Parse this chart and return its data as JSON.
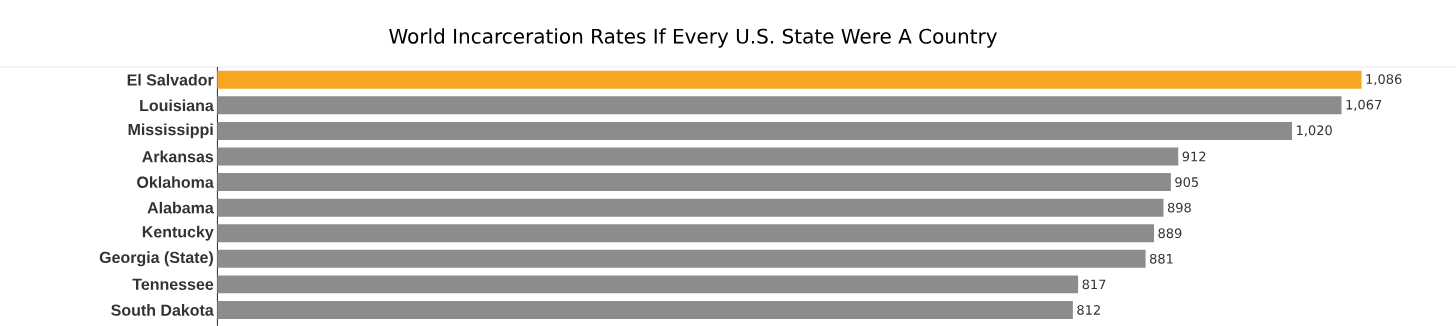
{
  "chart_data": {
    "type": "bar",
    "orientation": "horizontal",
    "title": "World Incarceration Rates If Every U.S. State Were A Country",
    "categories": [
      "El Salvador",
      "Louisiana",
      "Mississippi",
      "Arkansas",
      "Oklahoma",
      "Alabama",
      "Kentucky",
      "Georgia (State)",
      "Tennessee",
      "South Dakota"
    ],
    "values": [
      1086,
      1067,
      1020,
      912,
      905,
      898,
      889,
      881,
      817,
      812
    ],
    "value_labels": [
      "1,086",
      "1,067",
      "1,020",
      "912",
      "905",
      "898",
      "889",
      "881",
      "817",
      "812"
    ],
    "colors": [
      "#f5a623",
      "#8c8c8c",
      "#8c8c8c",
      "#8c8c8c",
      "#8c8c8c",
      "#8c8c8c",
      "#8c8c8c",
      "#8c8c8c",
      "#8c8c8c",
      "#8c8c8c"
    ],
    "tick_labels": "y"
  }
}
